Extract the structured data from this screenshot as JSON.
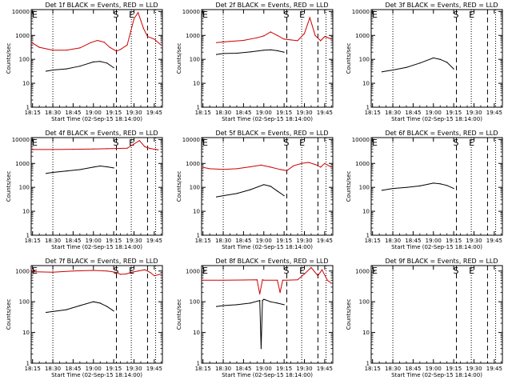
{
  "figure": {
    "y_label": "Counts/sec",
    "x_label": "Start Time (02-Sep-15 18:14:00)",
    "y_ticks": [
      "1",
      "10",
      "100",
      "1000",
      "10000"
    ],
    "x_ticks": [
      "18:15",
      "18:30",
      "18:45",
      "19:00",
      "19:15",
      "19:30",
      "19:45"
    ],
    "start_marker": "S",
    "end_marker": "E",
    "event_line_color": "#000000",
    "lld_line_color": "#cc0000"
  },
  "chart_data": [
    {
      "type": "line",
      "title": "Det 1f BLACK = Events, RED = LLD",
      "xlim": [
        "18:14",
        "19:51"
      ],
      "ylim": [
        1,
        12000
      ],
      "yscale": "log",
      "markers": {
        "dotted": [
          "18:30",
          "19:28",
          "19:46"
        ],
        "dashed": [
          "19:17",
          "19:40"
        ],
        "E_left": true,
        "S_at": "19:17",
        "E_at": "19:28"
      },
      "series": [
        {
          "role": "events",
          "x": [
            "18:25",
            "18:30",
            "18:40",
            "18:50",
            "19:00",
            "19:05",
            "19:10",
            "19:15"
          ],
          "y": [
            32,
            36,
            40,
            52,
            78,
            82,
            70,
            45
          ]
        },
        {
          "role": "lld",
          "x": [
            "18:14",
            "18:20",
            "18:30",
            "18:40",
            "18:50",
            "18:58",
            "19:03",
            "19:08",
            "19:12",
            "19:17",
            "19:20",
            "19:25",
            "19:30",
            "19:33",
            "19:37",
            "19:40",
            "19:45",
            "19:50"
          ],
          "y": [
            520,
            320,
            240,
            240,
            300,
            500,
            620,
            520,
            320,
            220,
            260,
            400,
            5000,
            9000,
            2000,
            900,
            700,
            400
          ]
        }
      ]
    },
    {
      "type": "line",
      "title": "Det 2f BLACK = Events, RED = LLD",
      "xlim": [
        "18:14",
        "19:51"
      ],
      "ylim": [
        1,
        12000
      ],
      "yscale": "log",
      "markers": {
        "dotted": [
          "18:30",
          "19:28",
          "19:46"
        ],
        "dashed": [
          "19:17",
          "19:40"
        ],
        "E_left": true,
        "S_at": "19:17",
        "E_at": "19:28"
      },
      "series": [
        {
          "role": "events",
          "x": [
            "18:25",
            "18:30",
            "18:40",
            "18:50",
            "19:00",
            "19:05",
            "19:10",
            "19:15"
          ],
          "y": [
            160,
            175,
            180,
            205,
            240,
            250,
            230,
            200
          ]
        },
        {
          "role": "lld",
          "x": [
            "18:25",
            "18:35",
            "18:45",
            "18:55",
            "19:00",
            "19:05",
            "19:10",
            "19:15",
            "19:20",
            "19:25",
            "19:30",
            "19:34",
            "19:38",
            "19:42",
            "19:45",
            "19:50"
          ],
          "y": [
            500,
            560,
            620,
            800,
            950,
            1400,
            1000,
            700,
            650,
            600,
            1200,
            5500,
            1000,
            600,
            900,
            700
          ]
        }
      ]
    },
    {
      "type": "line",
      "title": "Det 3f BLACK = Events, RED = LLD",
      "xlim": [
        "18:14",
        "19:51"
      ],
      "ylim": [
        1,
        12000
      ],
      "yscale": "log",
      "markers": {
        "dotted": [
          "18:30",
          "19:28",
          "19:46"
        ],
        "dashed": [
          "19:17",
          "19:40"
        ],
        "E_left": true,
        "S_at": "19:17",
        "E_at": "19:28"
      },
      "series": [
        {
          "role": "events",
          "x": [
            "18:22",
            "18:30",
            "18:40",
            "18:50",
            "19:00",
            "19:05",
            "19:10",
            "19:15"
          ],
          "y": [
            30,
            36,
            46,
            70,
            115,
            100,
            75,
            40
          ]
        }
      ]
    },
    {
      "type": "line",
      "title": "Det 4f BLACK = Events, RED = LLD",
      "xlim": [
        "18:14",
        "19:51"
      ],
      "ylim": [
        1,
        12000
      ],
      "yscale": "log",
      "markers": {
        "dotted": [
          "18:30",
          "19:28",
          "19:46"
        ],
        "dashed": [
          "19:17",
          "19:40"
        ],
        "E_left": true,
        "S_at": "19:17",
        "E_at": "19:28"
      },
      "series": [
        {
          "role": "events",
          "x": [
            "18:25",
            "18:30",
            "18:40",
            "18:50",
            "19:00",
            "19:05",
            "19:10",
            "19:15"
          ],
          "y": [
            380,
            420,
            480,
            550,
            700,
            780,
            720,
            650
          ]
        },
        {
          "role": "lld",
          "x": [
            "18:14",
            "18:30",
            "18:45",
            "19:00",
            "19:10",
            "19:17",
            "19:25",
            "19:30",
            "19:34",
            "19:38",
            "19:42",
            "19:48"
          ],
          "y": [
            3800,
            3800,
            3900,
            4000,
            4100,
            4200,
            4300,
            6500,
            9000,
            5000,
            4200,
            3700
          ]
        }
      ]
    },
    {
      "type": "line",
      "title": "Det 5f BLACK = Events, RED = LLD",
      "xlim": [
        "18:14",
        "19:51"
      ],
      "ylim": [
        1,
        12000
      ],
      "yscale": "log",
      "markers": {
        "dotted": [
          "18:30",
          "19:28",
          "19:46"
        ],
        "dashed": [
          "19:17",
          "19:40"
        ],
        "E_left": true,
        "S_at": "19:17",
        "E_at": "19:28"
      },
      "series": [
        {
          "role": "events",
          "x": [
            "18:25",
            "18:30",
            "18:40",
            "18:50",
            "19:00",
            "19:05",
            "19:10",
            "19:15"
          ],
          "y": [
            40,
            45,
            55,
            80,
            130,
            110,
            70,
            45
          ]
        },
        {
          "role": "lld",
          "x": [
            "18:14",
            "18:20",
            "18:30",
            "18:40",
            "18:50",
            "18:58",
            "19:05",
            "19:12",
            "19:17",
            "19:22",
            "19:28",
            "19:33",
            "19:38",
            "19:42",
            "19:45",
            "19:50"
          ],
          "y": [
            700,
            600,
            560,
            600,
            720,
            850,
            700,
            560,
            500,
            800,
            1000,
            1100,
            900,
            700,
            1000,
            700
          ]
        }
      ]
    },
    {
      "type": "line",
      "title": "Det 6f BLACK = Events, RED = LLD",
      "xlim": [
        "18:14",
        "19:51"
      ],
      "ylim": [
        1,
        12000
      ],
      "yscale": "log",
      "markers": {
        "dotted": [
          "18:30",
          "19:28",
          "19:46"
        ],
        "dashed": [
          "19:17",
          "19:40"
        ],
        "E_left": true,
        "S_at": "19:17",
        "E_at": "19:28"
      },
      "series": [
        {
          "role": "events",
          "x": [
            "18:22",
            "18:30",
            "18:40",
            "18:50",
            "19:00",
            "19:05",
            "19:10",
            "19:15"
          ],
          "y": [
            75,
            90,
            100,
            115,
            150,
            140,
            120,
            90
          ]
        }
      ]
    },
    {
      "type": "line",
      "title": "Det 7f BLACK = Events, RED = LLD",
      "xlim": [
        "18:14",
        "19:51"
      ],
      "ylim": [
        1,
        1500
      ],
      "yscale": "log",
      "markers": {
        "dotted": [
          "18:30",
          "19:28",
          "19:46"
        ],
        "dashed": [
          "19:17",
          "19:40"
        ],
        "E_left": true,
        "S_at": "19:17",
        "E_at": "19:28"
      },
      "series": [
        {
          "role": "events",
          "x": [
            "18:25",
            "18:30",
            "18:40",
            "18:50",
            "19:00",
            "19:05",
            "19:10",
            "19:15"
          ],
          "y": [
            45,
            48,
            55,
            75,
            100,
            90,
            70,
            50
          ]
        },
        {
          "role": "lld",
          "x": [
            "18:14",
            "18:30",
            "18:45",
            "19:00",
            "19:10",
            "19:17",
            "19:20",
            "19:24",
            "19:28",
            "19:33",
            "19:38",
            "19:42",
            "19:45",
            "19:50"
          ],
          "y": [
            950,
            920,
            1000,
            1050,
            1000,
            900,
            780,
            800,
            900,
            1000,
            1100,
            900,
            700,
            800
          ]
        }
      ]
    },
    {
      "type": "line",
      "title": "Det 8f BLACK = Events, RED = LLD",
      "xlim": [
        "18:14",
        "19:51"
      ],
      "ylim": [
        1,
        1500
      ],
      "yscale": "log",
      "markers": {
        "dotted": [
          "18:30",
          "19:28",
          "19:46"
        ],
        "dashed": [
          "19:17",
          "19:40"
        ],
        "E_left": true,
        "S_at": "19:17",
        "E_at": "19:28"
      },
      "series": [
        {
          "role": "events",
          "x": [
            "18:25",
            "18:30",
            "18:40",
            "18:50",
            "18:57",
            "18:58",
            "18:59",
            "19:00",
            "19:05",
            "19:10",
            "19:15"
          ],
          "y": [
            70,
            75,
            80,
            90,
            110,
            3,
            110,
            120,
            100,
            90,
            80
          ]
        },
        {
          "role": "lld",
          "x": [
            "18:14",
            "18:30",
            "18:45",
            "18:55",
            "18:57",
            "18:59",
            "19:00",
            "19:10",
            "19:12",
            "19:14",
            "19:17",
            "19:25",
            "19:30",
            "19:35",
            "19:40",
            "19:43",
            "19:47",
            "19:50"
          ],
          "y": [
            500,
            500,
            510,
            520,
            180,
            520,
            500,
            500,
            200,
            500,
            500,
            520,
            800,
            1300,
            700,
            1100,
            500,
            400
          ]
        }
      ]
    },
    {
      "type": "line",
      "title": "Det 9f BLACK = Events, RED = LLD",
      "xlim": [
        "18:14",
        "19:51"
      ],
      "ylim": [
        1,
        1500
      ],
      "yscale": "log",
      "markers": {
        "dotted": [
          "18:30",
          "19:28",
          "19:46"
        ],
        "dashed": [
          "19:17",
          "19:40"
        ],
        "E_left": true,
        "S_at": "19:17",
        "E_at": "19:28"
      },
      "series": []
    }
  ]
}
